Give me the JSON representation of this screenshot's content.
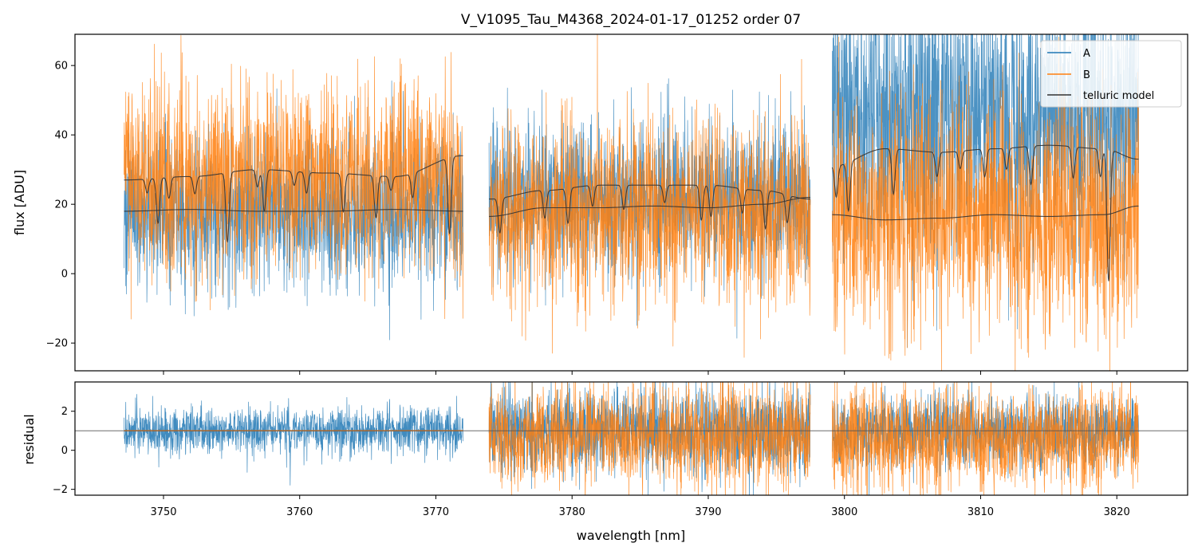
{
  "chart_data": [
    {
      "type": "line",
      "panel": "flux",
      "title": "V_V1095_Tau_M4368_2024-01-17_01252  order 07",
      "xlabel": "",
      "ylabel": "flux [ADU]",
      "xlim": [
        3743.5,
        3825.2
      ],
      "ylim": [
        -28,
        69
      ],
      "yticks": [
        -20,
        0,
        20,
        40,
        60
      ],
      "ytick_labels": [
        "−20",
        "0",
        "20",
        "40",
        "60"
      ],
      "grid": false,
      "legend_position": "top-right",
      "legend": [
        "A",
        "B",
        "telluric model"
      ],
      "segments": [
        {
          "x_start": 3747.1,
          "x_end": 3772.0
        },
        {
          "x_start": 3773.9,
          "x_end": 3797.5
        },
        {
          "x_start": 3799.1,
          "x_end": 3821.6
        }
      ],
      "series": [
        {
          "name": "A",
          "color": "#1f77b4",
          "segment_levels": [
            18,
            22,
            45
          ],
          "segment_noise": [
            11,
            11,
            20
          ]
        },
        {
          "name": "B",
          "color": "#ff7f0e",
          "segment_levels": [
            27,
            18,
            17
          ],
          "segment_noise": [
            14,
            13,
            17
          ]
        },
        {
          "name": "telluric model",
          "color": "#333333",
          "continua": [
            {
              "x": [
                3747.1,
                3752,
                3757,
                3762,
                3767,
                3772.0
              ],
              "y": [
                27,
                28,
                30,
                29,
                28,
                34
              ]
            },
            {
              "x": [
                3747.1,
                3752,
                3757,
                3762,
                3767,
                3772.0
              ],
              "y": [
                18,
                18.5,
                18,
                18,
                18.5,
                18
              ]
            },
            {
              "x": [
                3773.9,
                3778,
                3782,
                3786,
                3790,
                3794,
                3797.5
              ],
              "y": [
                21.5,
                24,
                25.5,
                25.5,
                25.5,
                24,
                21.5
              ]
            },
            {
              "x": [
                3773.9,
                3778,
                3782,
                3786,
                3790,
                3794,
                3797.5
              ],
              "y": [
                16.5,
                19,
                19,
                19.5,
                19,
                20,
                22
              ]
            },
            {
              "x": [
                3799.1,
                3803,
                3807,
                3811,
                3815,
                3819,
                3821.6
              ],
              "y": [
                31,
                36,
                35,
                36,
                37,
                36,
                33
              ]
            },
            {
              "x": [
                3799.1,
                3803,
                3807,
                3811,
                3815,
                3819,
                3821.6
              ],
              "y": [
                17,
                15.5,
                16,
                17,
                16.5,
                17,
                19.5
              ]
            }
          ],
          "absorption_lines": [
            {
              "x": 3748.8,
              "depth": 4
            },
            {
              "x": 3749.6,
              "depth": 13
            },
            {
              "x": 3750.4,
              "depth": 6
            },
            {
              "x": 3752.3,
              "depth": 5
            },
            {
              "x": 3754.7,
              "depth": 20
            },
            {
              "x": 3756.9,
              "depth": 5
            },
            {
              "x": 3757.4,
              "depth": 12
            },
            {
              "x": 3759.6,
              "depth": 4
            },
            {
              "x": 3760.5,
              "depth": 6
            },
            {
              "x": 3763.2,
              "depth": 11
            },
            {
              "x": 3765.6,
              "depth": 12
            },
            {
              "x": 3766.7,
              "depth": 4
            },
            {
              "x": 3768.3,
              "depth": 7
            },
            {
              "x": 3771.0,
              "depth": 22
            },
            {
              "x": 3774.7,
              "depth": 10
            },
            {
              "x": 3778.0,
              "depth": 8
            },
            {
              "x": 3779.7,
              "depth": 10
            },
            {
              "x": 3781.5,
              "depth": 6
            },
            {
              "x": 3783.8,
              "depth": 7
            },
            {
              "x": 3786.8,
              "depth": 5
            },
            {
              "x": 3789.5,
              "depth": 10
            },
            {
              "x": 3790.2,
              "depth": 9
            },
            {
              "x": 3792.5,
              "depth": 7
            },
            {
              "x": 3794.2,
              "depth": 11
            },
            {
              "x": 3795.8,
              "depth": 8
            },
            {
              "x": 3799.4,
              "depth": 9
            },
            {
              "x": 3800.3,
              "depth": 14
            },
            {
              "x": 3803.6,
              "depth": 13
            },
            {
              "x": 3806.8,
              "depth": 7
            },
            {
              "x": 3808.5,
              "depth": 5
            },
            {
              "x": 3810.3,
              "depth": 8
            },
            {
              "x": 3811.9,
              "depth": 6
            },
            {
              "x": 3813.7,
              "depth": 11
            },
            {
              "x": 3816.8,
              "depth": 9
            },
            {
              "x": 3818.8,
              "depth": 8
            },
            {
              "x": 3819.4,
              "depth": 38
            }
          ]
        }
      ]
    },
    {
      "type": "line",
      "panel": "residual",
      "xlabel": "wavelength [nm]",
      "ylabel": "residual",
      "xlim": [
        3743.5,
        3825.2
      ],
      "ylim": [
        -2.3,
        3.5
      ],
      "yticks": [
        -2,
        0,
        2
      ],
      "ytick_labels": [
        "−2",
        "0",
        "2"
      ],
      "xticks": [
        3750,
        3760,
        3770,
        3780,
        3790,
        3800,
        3810,
        3820
      ],
      "xtick_labels": [
        "3750",
        "3760",
        "3770",
        "3780",
        "3790",
        "3800",
        "3810",
        "3820"
      ],
      "reference_line": 1,
      "grid": false,
      "segments": [
        {
          "x_start": 3747.1,
          "x_end": 3772.0
        },
        {
          "x_start": 3773.9,
          "x_end": 3797.5
        },
        {
          "x_start": 3799.1,
          "x_end": 3821.6
        }
      ],
      "series": [
        {
          "name": "A",
          "color": "#1f77b4",
          "segment_levels": [
            1.0,
            1.0,
            1.0
          ],
          "segment_noise": [
            0.6,
            1.1,
            0.9
          ]
        },
        {
          "name": "B",
          "color": "#ff7f0e",
          "segment_levels": [
            1.0,
            0.8,
            0.6
          ],
          "segment_noise": [
            0.0,
            1.3,
            1.3
          ]
        }
      ]
    }
  ]
}
